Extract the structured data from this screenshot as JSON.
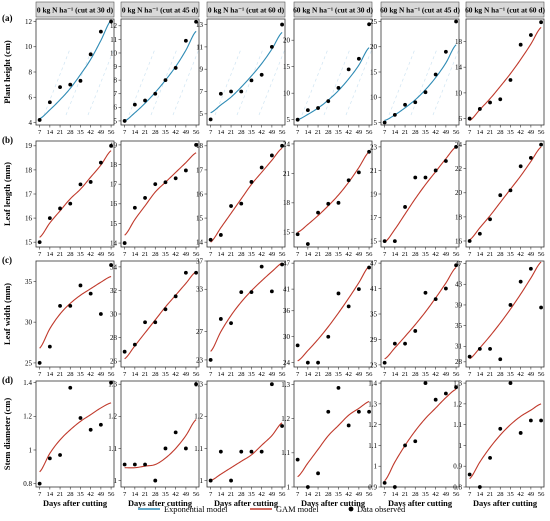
{
  "figure": {
    "col_headers": [
      "0 kg N ha⁻¹ (cut at 30 d)",
      "0 kg N ha⁻¹ (cut at 45 d)",
      "0 kg N ha⁻¹ (cut at 60 d)",
      "60 kg N ha⁻¹ (cut at 30 d)",
      "60 kg N ha⁻¹ (cut at 45 d)",
      "60 kg N ha⁻¹ (cut at 60 d)"
    ],
    "row_letters": [
      "(a)",
      "(b)",
      "(c)",
      "(d)"
    ],
    "row_ylabels": [
      "Plant height (cm)",
      "Leaf length (mm)",
      "Leaf width (mm)",
      "Stem diameter (cm)"
    ],
    "xlabel": "Days after cutting",
    "x_ticks": [
      7,
      14,
      21,
      28,
      35,
      42,
      49,
      56
    ],
    "legend": [
      {
        "label": "Exponential model",
        "color": "#2e8bb5",
        "kind": "line"
      },
      {
        "label": "GAM model",
        "color": "#c0392b",
        "kind": "line"
      },
      {
        "label": "Data observed",
        "color": "#000000",
        "kind": "point"
      }
    ]
  },
  "chart_data": [
    {
      "type": "scatter",
      "row": 0,
      "col": 0,
      "fit": "exponential",
      "ylim": [
        3.8,
        12.2
      ],
      "yticks": [
        4,
        6,
        8,
        10,
        12
      ],
      "x": [
        7,
        14,
        21,
        28,
        35,
        42,
        49,
        56
      ],
      "y": [
        4.2,
        5.6,
        6.8,
        7.0,
        7.3,
        9.4,
        11.2,
        12.0
      ],
      "fit_y": [
        4.3,
        5.0,
        5.8,
        6.7,
        7.8,
        9.0,
        10.5,
        12.1
      ]
    },
    {
      "type": "scatter",
      "row": 0,
      "col": 1,
      "fit": "exponential",
      "ylim": [
        4.7,
        12.5
      ],
      "yticks": [
        5,
        6,
        7,
        8,
        9,
        10,
        11,
        12
      ],
      "x": [
        7,
        14,
        21,
        28,
        35,
        42,
        49,
        56
      ],
      "y": [
        5.0,
        6.2,
        6.5,
        7.0,
        8.0,
        8.9,
        10.9,
        12.3
      ],
      "fit_y": [
        5.0,
        5.6,
        6.3,
        7.1,
        8.0,
        9.0,
        10.2,
        11.6
      ]
    },
    {
      "type": "scatter",
      "row": 0,
      "col": 2,
      "fit": "exponential",
      "ylim": [
        4.0,
        13.5
      ],
      "yticks": [
        5,
        7,
        9,
        11,
        13
      ],
      "x": [
        7,
        14,
        21,
        28,
        35,
        42,
        49,
        56
      ],
      "y": [
        4.5,
        6.8,
        7.0,
        7.0,
        8.0,
        8.5,
        11.0,
        13.0
      ],
      "fit_y": [
        5.1,
        5.8,
        6.5,
        7.4,
        8.4,
        9.5,
        10.8,
        12.3
      ]
    },
    {
      "type": "scatter",
      "row": 0,
      "col": 3,
      "fit": "exponential",
      "ylim": [
        4.0,
        24.0
      ],
      "yticks": [
        5,
        10,
        15,
        20
      ],
      "x": [
        7,
        14,
        21,
        28,
        35,
        42,
        49,
        56
      ],
      "y": [
        5.0,
        6.8,
        7.2,
        8.5,
        11.0,
        14.5,
        16.5,
        23.0
      ],
      "fit_y": [
        5.0,
        6.0,
        7.2,
        8.7,
        10.5,
        12.7,
        15.3,
        18.6
      ]
    },
    {
      "type": "scatter",
      "row": 0,
      "col": 4,
      "fit": "exponential",
      "ylim": [
        4.5,
        25.5
      ],
      "yticks": [
        5,
        10,
        15,
        20,
        25
      ],
      "x": [
        7,
        14,
        21,
        28,
        35,
        42,
        49,
        56
      ],
      "y": [
        5.0,
        6.5,
        8.5,
        9.0,
        11.0,
        14.5,
        19.0,
        25.0
      ],
      "fit_y": [
        5.4,
        6.5,
        7.9,
        9.5,
        11.5,
        13.9,
        16.8,
        20.4
      ]
    },
    {
      "type": "scatter",
      "row": 0,
      "col": 5,
      "fit": "gam",
      "ylim": [
        5.0,
        21.5
      ],
      "yticks": [
        6,
        10,
        14,
        18
      ],
      "x": [
        7,
        14,
        21,
        28,
        35,
        42,
        49,
        56
      ],
      "y": [
        6.0,
        7.5,
        8.5,
        9.0,
        12.0,
        17.5,
        19.0,
        21.0
      ],
      "fit_y": [
        5.7,
        7.4,
        9.1,
        11.0,
        13.0,
        15.2,
        17.6,
        20.2
      ]
    },
    {
      "type": "scatter",
      "row": 1,
      "col": 0,
      "fit": "gam",
      "ylim": [
        14.8,
        19.2
      ],
      "yticks": [
        15,
        16,
        17,
        18,
        19
      ],
      "x": [
        7,
        14,
        21,
        28,
        35,
        42,
        49,
        56
      ],
      "y": [
        15.0,
        16.0,
        16.4,
        16.6,
        17.4,
        17.5,
        18.3,
        19.0
      ],
      "fit_y": [
        15.2,
        15.8,
        16.3,
        16.8,
        17.2,
        17.7,
        18.2,
        18.8
      ]
    },
    {
      "type": "scatter",
      "row": 1,
      "col": 1,
      "fit": "gam",
      "ylim": [
        13.8,
        19.2
      ],
      "yticks": [
        14,
        15,
        16,
        17,
        18,
        19
      ],
      "x": [
        7,
        14,
        21,
        28,
        35,
        42,
        49,
        56
      ],
      "y": [
        14.0,
        15.8,
        16.3,
        17.0,
        17.1,
        17.3,
        17.7,
        19.0
      ],
      "fit_y": [
        14.4,
        15.2,
        15.9,
        16.6,
        17.1,
        17.6,
        18.1,
        18.6
      ]
    },
    {
      "type": "scatter",
      "row": 1,
      "col": 2,
      "fit": "gam",
      "ylim": [
        13.8,
        18.2
      ],
      "yticks": [
        14,
        15,
        16,
        17,
        18
      ],
      "x": [
        7,
        14,
        21,
        28,
        35,
        42,
        49,
        56
      ],
      "y": [
        14.1,
        14.3,
        15.5,
        15.6,
        16.5,
        17.1,
        17.6,
        18.0
      ],
      "fit_y": [
        14.0,
        14.6,
        15.2,
        15.8,
        16.4,
        16.9,
        17.4,
        17.9
      ]
    },
    {
      "type": "scatter",
      "row": 1,
      "col": 3,
      "fit": "gam",
      "ylim": [
        13.5,
        24.3
      ],
      "yticks": [
        15,
        18,
        21,
        24
      ],
      "x": [
        7,
        14,
        21,
        28,
        35,
        42,
        49,
        56
      ],
      "y": [
        14.8,
        13.8,
        17.0,
        17.9,
        18.0,
        20.3,
        21.1,
        23.2
      ],
      "fit_y": [
        15.0,
        15.8,
        16.7,
        17.7,
        18.8,
        20.1,
        21.6,
        23.2
      ]
    },
    {
      "type": "scatter",
      "row": 1,
      "col": 4,
      "fit": "gam",
      "ylim": [
        14.5,
        23.5
      ],
      "yticks": [
        15,
        17,
        19,
        21,
        23
      ],
      "x": [
        7,
        14,
        21,
        28,
        35,
        42,
        49,
        56
      ],
      "y": [
        15.0,
        15.0,
        17.9,
        20.4,
        20.4,
        21.0,
        21.8,
        23.0
      ],
      "fit_y": [
        14.9,
        16.0,
        17.3,
        18.6,
        19.8,
        20.9,
        22.0,
        23.0
      ]
    },
    {
      "type": "scatter",
      "row": 1,
      "col": 5,
      "fit": "gam",
      "ylim": [
        15.5,
        24.3
      ],
      "yticks": [
        16,
        18,
        20,
        22,
        24
      ],
      "x": [
        7,
        14,
        21,
        28,
        35,
        42,
        49,
        56
      ],
      "y": [
        16.0,
        16.6,
        17.8,
        19.8,
        20.2,
        22.2,
        22.9,
        24.0
      ],
      "fit_y": [
        16.1,
        17.1,
        18.1,
        19.2,
        20.3,
        21.4,
        22.6,
        23.8
      ]
    },
    {
      "type": "scatter",
      "row": 2,
      "col": 0,
      "fit": "gam",
      "ylim": [
        24.5,
        37.5
      ],
      "yticks": [
        25,
        30,
        35
      ],
      "x": [
        7,
        14,
        21,
        28,
        35,
        42,
        49,
        56
      ],
      "y": [
        25.0,
        27.0,
        32.0,
        32.0,
        34.5,
        33.5,
        31.0,
        37.0
      ],
      "fit_y": [
        26.8,
        29.2,
        31.0,
        32.3,
        33.3,
        34.1,
        34.9,
        35.6
      ]
    },
    {
      "type": "scatter",
      "row": 2,
      "col": 1,
      "fit": "gam",
      "ylim": [
        25.5,
        34.5
      ],
      "yticks": [
        26,
        28,
        30,
        32,
        34
      ],
      "x": [
        7,
        14,
        21,
        28,
        35,
        42,
        49,
        56
      ],
      "y": [
        26.8,
        27.4,
        29.3,
        29.3,
        30.4,
        31.5,
        33.5,
        33.5
      ],
      "fit_y": [
        26.2,
        27.3,
        28.4,
        29.5,
        30.6,
        31.6,
        32.6,
        33.6
      ]
    },
    {
      "type": "scatter",
      "row": 2,
      "col": 2,
      "fit": "gam",
      "ylim": [
        22.0,
        37.0
      ],
      "yticks": [
        23,
        27,
        33,
        37
      ],
      "x": [
        7,
        14,
        21,
        28,
        35,
        42,
        49,
        56
      ],
      "y": [
        23.0,
        28.8,
        28.2,
        32.6,
        32.6,
        36.2,
        32.7,
        36.5
      ],
      "fit_y": [
        24.2,
        27.0,
        29.3,
        31.2,
        32.8,
        34.2,
        35.5,
        36.7
      ]
    },
    {
      "type": "scatter",
      "row": 2,
      "col": 3,
      "fit": "gam",
      "ylim": [
        23.0,
        47.5
      ],
      "yticks": [
        24,
        30,
        36,
        41,
        47
      ],
      "x": [
        7,
        14,
        21,
        28,
        35,
        42,
        49,
        56
      ],
      "y": [
        28.0,
        24.0,
        24.0,
        30.0,
        40.0,
        37.0,
        41.0,
        46.0
      ],
      "fit_y": [
        24.4,
        26.8,
        29.4,
        32.3,
        35.5,
        38.9,
        42.5,
        46.3
      ]
    },
    {
      "type": "scatter",
      "row": 2,
      "col": 4,
      "fit": "gam",
      "ylim": [
        22.5,
        47.5
      ],
      "yticks": [
        23,
        29,
        35,
        41,
        47
      ],
      "x": [
        7,
        14,
        21,
        28,
        35,
        42,
        49,
        56
      ],
      "y": [
        23.5,
        28.0,
        28.0,
        31.0,
        40.0,
        38.5,
        41.0,
        46.5
      ],
      "fit_y": [
        24.4,
        27.0,
        29.7,
        32.5,
        35.5,
        38.8,
        42.3,
        46.0
      ]
    },
    {
      "type": "scatter",
      "row": 2,
      "col": 5,
      "fit": "gam",
      "ylim": [
        27.0,
        47.5
      ],
      "yticks": [
        28,
        31,
        35,
        39,
        43,
        47
      ],
      "x": [
        7,
        14,
        21,
        28,
        35,
        42,
        49,
        56
      ],
      "y": [
        29.0,
        30.5,
        30.5,
        28.5,
        39.0,
        43.5,
        46.0,
        38.5
      ],
      "fit_y": [
        28.6,
        30.7,
        33.0,
        35.5,
        38.2,
        41.1,
        44.2,
        47.3
      ]
    },
    {
      "type": "scatter",
      "row": 3,
      "col": 0,
      "fit": "gam",
      "ylim": [
        0.78,
        1.41
      ],
      "yticks": [
        0.8,
        1.0,
        1.2,
        1.4
      ],
      "x": [
        7,
        14,
        21,
        28,
        35,
        42,
        49,
        56
      ],
      "y": [
        0.8,
        0.95,
        0.97,
        1.37,
        1.19,
        1.12,
        1.15,
        1.4
      ],
      "fit_y": [
        0.87,
        0.98,
        1.06,
        1.12,
        1.17,
        1.21,
        1.25,
        1.28
      ]
    },
    {
      "type": "scatter",
      "row": 3,
      "col": 1,
      "fit": "gam",
      "ylim": [
        0.98,
        1.31
      ],
      "yticks": [
        1.0,
        1.1,
        1.2,
        1.3
      ],
      "x": [
        7,
        14,
        21,
        28,
        35,
        42,
        49,
        56
      ],
      "y": [
        1.05,
        1.05,
        1.05,
        1.0,
        1.1,
        1.15,
        1.1,
        1.3
      ],
      "fit_y": [
        1.04,
        1.04,
        1.045,
        1.05,
        1.07,
        1.1,
        1.14,
        1.19
      ]
    },
    {
      "type": "scatter",
      "row": 3,
      "col": 2,
      "fit": "gam",
      "ylim": [
        0.98,
        1.31
      ],
      "yticks": [
        1.0,
        1.1,
        1.2,
        1.3
      ],
      "x": [
        7,
        14,
        21,
        28,
        35,
        42,
        49,
        56
      ],
      "y": [
        1.0,
        1.09,
        1.0,
        1.09,
        1.09,
        1.09,
        1.3,
        1.17
      ],
      "fit_y": [
        1.0,
        1.02,
        1.04,
        1.06,
        1.08,
        1.11,
        1.14,
        1.18
      ]
    },
    {
      "type": "scatter",
      "row": 3,
      "col": 3,
      "fit": "gam",
      "ylim": [
        1.0,
        1.31
      ],
      "yticks": [
        1.0,
        1.1,
        1.2,
        1.3
      ],
      "x": [
        7,
        14,
        21,
        28,
        35,
        42,
        49,
        56
      ],
      "y": [
        1.08,
        1.0,
        1.04,
        1.22,
        1.29,
        1.18,
        1.22,
        1.22
      ],
      "fit_y": [
        1.03,
        1.07,
        1.11,
        1.15,
        1.18,
        1.21,
        1.23,
        1.25
      ]
    },
    {
      "type": "scatter",
      "row": 3,
      "col": 4,
      "fit": "gam",
      "ylim": [
        0.9,
        1.41
      ],
      "yticks": [
        0.9,
        1.0,
        1.1,
        1.2,
        1.3,
        1.4
      ],
      "x": [
        7,
        14,
        21,
        28,
        35,
        42,
        49,
        56
      ],
      "y": [
        0.92,
        0.9,
        1.1,
        1.12,
        1.4,
        1.32,
        1.35,
        1.38
      ],
      "fit_y": [
        0.93,
        1.02,
        1.1,
        1.17,
        1.23,
        1.28,
        1.33,
        1.37
      ]
    },
    {
      "type": "scatter",
      "row": 3,
      "col": 5,
      "fit": "gam",
      "ylim": [
        0.8,
        1.31
      ],
      "yticks": [
        0.8,
        0.9,
        1.0,
        1.1,
        1.2,
        1.3
      ],
      "x": [
        7,
        14,
        21,
        28,
        35,
        42,
        49,
        56
      ],
      "y": [
        0.86,
        0.8,
        0.94,
        1.08,
        1.3,
        1.06,
        1.12,
        1.12
      ],
      "fit_y": [
        0.84,
        0.92,
        0.99,
        1.05,
        1.1,
        1.14,
        1.17,
        1.2
      ]
    }
  ]
}
